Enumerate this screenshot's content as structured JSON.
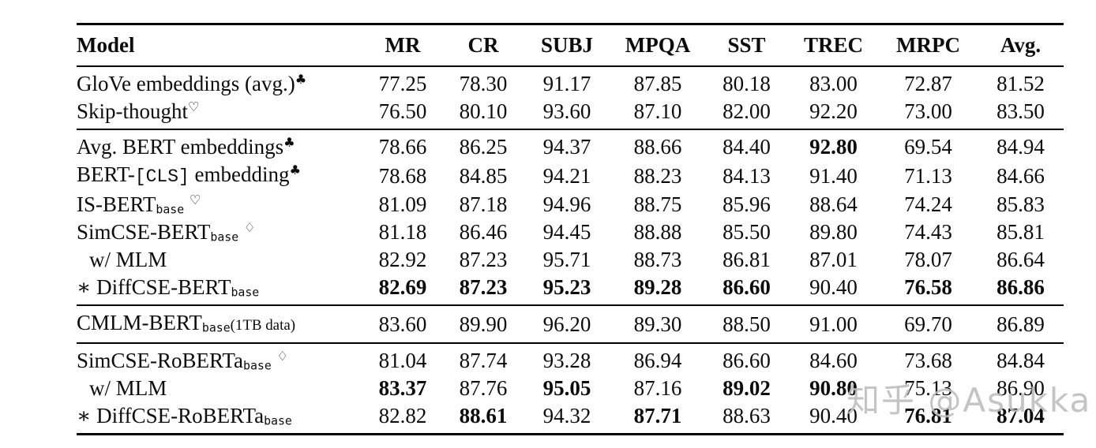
{
  "watermark": {
    "text": "知乎 @Asukka",
    "color": "#bdbdbd"
  },
  "colors": {
    "text": "#0c0c0c",
    "rule": "#000000",
    "background": "#ffffff"
  },
  "table": {
    "headers": [
      "Model",
      "MR",
      "CR",
      "SUBJ",
      "MPQA",
      "SST",
      "TREC",
      "MRPC",
      "Avg."
    ],
    "sections": [
      {
        "rows": [
          {
            "label": [
              {
                "t": "GloVe embeddings (avg.)"
              },
              {
                "sup": "♣"
              }
            ],
            "cells": [
              {
                "v": "77.25"
              },
              {
                "v": "78.30"
              },
              {
                "v": "91.17"
              },
              {
                "v": "87.85"
              },
              {
                "v": "80.18"
              },
              {
                "v": "83.00"
              },
              {
                "v": "72.87"
              },
              {
                "v": "81.52"
              }
            ]
          },
          {
            "label": [
              {
                "t": "Skip-thought"
              },
              {
                "sup": "♡"
              }
            ],
            "cells": [
              {
                "v": "76.50"
              },
              {
                "v": "80.10"
              },
              {
                "v": "93.60"
              },
              {
                "v": "87.10"
              },
              {
                "v": "82.00"
              },
              {
                "v": "92.20"
              },
              {
                "v": "73.00"
              },
              {
                "v": "83.50"
              }
            ]
          }
        ]
      },
      {
        "rows": [
          {
            "label": [
              {
                "t": "Avg. BERT embeddings"
              },
              {
                "sup": "♣"
              }
            ],
            "cells": [
              {
                "v": "78.66"
              },
              {
                "v": "86.25"
              },
              {
                "v": "94.37"
              },
              {
                "v": "88.66"
              },
              {
                "v": "84.40"
              },
              {
                "v": "92.80",
                "b": true
              },
              {
                "v": "69.54"
              },
              {
                "v": "84.94"
              }
            ]
          },
          {
            "label": [
              {
                "t": "BERT-"
              },
              {
                "mono": "[CLS]"
              },
              {
                "t": " embedding"
              },
              {
                "sup": "♣"
              }
            ],
            "cells": [
              {
                "v": "78.68"
              },
              {
                "v": "84.85"
              },
              {
                "v": "94.21"
              },
              {
                "v": "88.23"
              },
              {
                "v": "84.13"
              },
              {
                "v": "91.40"
              },
              {
                "v": "71.13"
              },
              {
                "v": "84.66"
              }
            ]
          },
          {
            "label": [
              {
                "t": "IS-BERT"
              },
              {
                "sub": "base"
              },
              {
                "t": " "
              },
              {
                "sup": "♡"
              }
            ],
            "cells": [
              {
                "v": "81.09"
              },
              {
                "v": "87.18"
              },
              {
                "v": "94.96"
              },
              {
                "v": "88.75"
              },
              {
                "v": "85.96"
              },
              {
                "v": "88.64"
              },
              {
                "v": "74.24"
              },
              {
                "v": "85.83"
              }
            ]
          },
          {
            "label": [
              {
                "t": "SimCSE-BERT"
              },
              {
                "sub": "base"
              },
              {
                "t": " "
              },
              {
                "sup": "♢"
              }
            ],
            "cells": [
              {
                "v": "81.18"
              },
              {
                "v": "86.46"
              },
              {
                "v": "94.45"
              },
              {
                "v": "88.88"
              },
              {
                "v": "85.50"
              },
              {
                "v": "89.80"
              },
              {
                "v": "74.43"
              },
              {
                "v": "85.81"
              }
            ]
          },
          {
            "indent": true,
            "label": [
              {
                "t": "w/ MLM"
              }
            ],
            "cells": [
              {
                "v": "82.92"
              },
              {
                "v": "87.23"
              },
              {
                "v": "95.71"
              },
              {
                "v": "88.73"
              },
              {
                "v": "86.81"
              },
              {
                "v": "87.01"
              },
              {
                "v": "78.07"
              },
              {
                "v": "86.64"
              }
            ]
          },
          {
            "label": [
              {
                "t": "∗ DiffCSE-BERT"
              },
              {
                "sub": "base"
              }
            ],
            "cells": [
              {
                "v": "82.69",
                "b": true
              },
              {
                "v": "87.23",
                "b": true
              },
              {
                "v": "95.23",
                "b": true
              },
              {
                "v": "89.28",
                "b": true
              },
              {
                "v": "86.60",
                "b": true
              },
              {
                "v": "90.40"
              },
              {
                "v": "76.58",
                "b": true
              },
              {
                "v": "86.86",
                "b": true
              }
            ]
          }
        ]
      },
      {
        "rows": [
          {
            "label": [
              {
                "t": "CMLM-BERT"
              },
              {
                "sub": "base"
              },
              {
                "small": "(1TB data)"
              }
            ],
            "cells": [
              {
                "v": "83.60"
              },
              {
                "v": "89.90"
              },
              {
                "v": "96.20"
              },
              {
                "v": "89.30"
              },
              {
                "v": "88.50"
              },
              {
                "v": "91.00"
              },
              {
                "v": "69.70"
              },
              {
                "v": "86.89"
              }
            ]
          }
        ]
      },
      {
        "rows": [
          {
            "label": [
              {
                "t": "SimCSE-RoBERTa"
              },
              {
                "sub": "base"
              },
              {
                "t": " "
              },
              {
                "sup": "♢"
              }
            ],
            "cells": [
              {
                "v": "81.04"
              },
              {
                "v": "87.74"
              },
              {
                "v": "93.28"
              },
              {
                "v": "86.94"
              },
              {
                "v": "86.60"
              },
              {
                "v": "84.60"
              },
              {
                "v": "73.68"
              },
              {
                "v": "84.84"
              }
            ]
          },
          {
            "indent": true,
            "label": [
              {
                "t": "w/ MLM"
              }
            ],
            "cells": [
              {
                "v": "83.37",
                "b": true
              },
              {
                "v": "87.76"
              },
              {
                "v": "95.05",
                "b": true
              },
              {
                "v": "87.16"
              },
              {
                "v": "89.02",
                "b": true
              },
              {
                "v": "90.80",
                "b": true
              },
              {
                "v": "75.13"
              },
              {
                "v": "86.90"
              }
            ]
          },
          {
            "label": [
              {
                "t": "∗ DiffCSE-RoBERTa"
              },
              {
                "sub": "base"
              }
            ],
            "cells": [
              {
                "v": "82.82"
              },
              {
                "v": "88.61",
                "b": true
              },
              {
                "v": "94.32"
              },
              {
                "v": "87.71",
                "b": true
              },
              {
                "v": "88.63"
              },
              {
                "v": "90.40"
              },
              {
                "v": "76.81",
                "b": true
              },
              {
                "v": "87.04",
                "b": true
              }
            ]
          }
        ]
      }
    ]
  }
}
